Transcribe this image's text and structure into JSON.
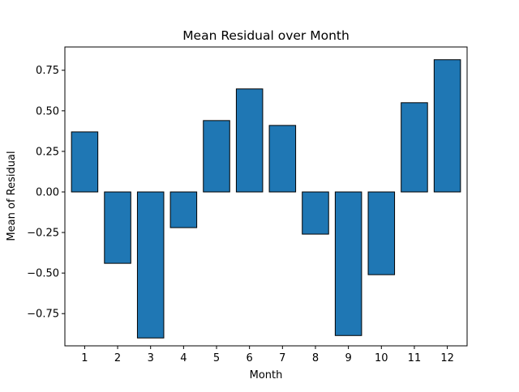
{
  "chart_data": {
    "type": "bar",
    "title": "Mean Residual over Month",
    "xlabel": "Month",
    "ylabel": "Mean of Residual",
    "categories": [
      "1",
      "2",
      "3",
      "4",
      "5",
      "6",
      "7",
      "8",
      "9",
      "10",
      "11",
      "12"
    ],
    "values": [
      0.37,
      -0.44,
      -0.9,
      -0.22,
      0.44,
      0.635,
      0.41,
      -0.26,
      -0.885,
      -0.51,
      0.55,
      0.815
    ],
    "yticks": [
      -0.75,
      -0.5,
      -0.25,
      0.0,
      0.25,
      0.5,
      0.75
    ],
    "ytick_labels": [
      "−0.75",
      "−0.50",
      "−0.25",
      "0.00",
      "0.25",
      "0.50",
      "0.75"
    ],
    "ylim": [
      -0.9485,
      0.8935
    ],
    "grid": false,
    "colors": {
      "bar_fill": "#1f77b4",
      "bar_edge": "#000000",
      "axis": "#000000",
      "background": "#ffffff"
    }
  }
}
